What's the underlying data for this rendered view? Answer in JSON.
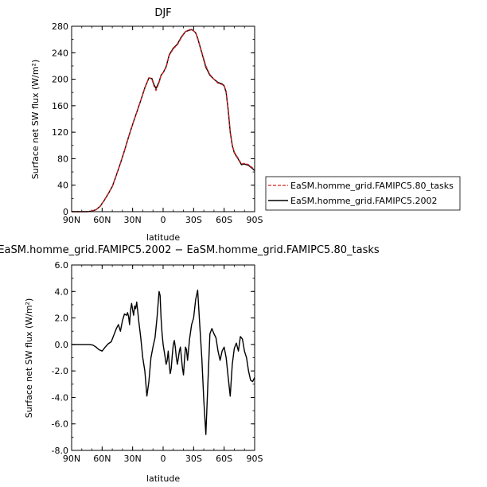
{
  "chart_data": [
    {
      "type": "line",
      "title": "DJF",
      "xlabel": "latitude",
      "ylabel": "Surface net SW flux (W/m²)",
      "xlim": [
        90,
        -90
      ],
      "ylim": [
        0,
        280
      ],
      "x_ticks": [
        90,
        60,
        30,
        0,
        -30,
        -60,
        -90
      ],
      "x_tick_labels": [
        "90N",
        "60N",
        "30N",
        "0",
        "30S",
        "60S",
        "90S"
      ],
      "y_ticks": [
        0,
        40,
        80,
        120,
        160,
        200,
        240,
        280
      ],
      "y_tick_labels": [
        "0",
        "40",
        "80",
        "120",
        "160",
        "200",
        "240",
        "280"
      ],
      "legend_position": "right",
      "series": [
        {
          "name": "EaSM.homme_grid.FAMIPC5.80_tasks",
          "color": "#d62020",
          "dash": "dashed",
          "x": [
            90,
            75,
            70,
            66,
            62,
            58,
            54,
            50,
            46,
            42,
            38,
            34,
            30,
            26,
            22,
            18,
            14,
            11,
            9,
            7,
            4,
            2,
            0,
            -3,
            -6,
            -10,
            -14,
            -18,
            -22,
            -26,
            -28,
            -30,
            -32,
            -34,
            -38,
            -42,
            -46,
            -50,
            -54,
            -58,
            -60,
            -62,
            -64,
            -66,
            -68,
            -70,
            -74,
            -77,
            -80,
            -84,
            -88,
            -90
          ],
          "y": [
            0,
            0,
            1,
            3,
            8,
            17,
            27,
            38,
            55,
            73,
            92,
            113,
            132,
            150,
            168,
            187,
            202,
            200,
            190,
            183,
            195,
            206,
            210,
            218,
            236,
            246,
            252,
            263,
            272,
            275,
            275,
            273,
            270,
            262,
            241,
            220,
            207,
            200,
            194,
            192,
            190,
            182,
            155,
            122,
            101,
            90,
            80,
            72,
            73,
            71,
            66,
            64
          ]
        },
        {
          "name": "EaSM.homme_grid.FAMIPC5.2002",
          "color": "#000000",
          "dash": "solid",
          "x": [
            90,
            75,
            70,
            66,
            62,
            58,
            54,
            50,
            46,
            42,
            38,
            34,
            30,
            26,
            22,
            18,
            14,
            11,
            9,
            7,
            4,
            2,
            0,
            -3,
            -6,
            -10,
            -14,
            -18,
            -22,
            -26,
            -28,
            -30,
            -32,
            -34,
            -38,
            -42,
            -46,
            -50,
            -54,
            -58,
            -60,
            -62,
            -64,
            -66,
            -68,
            -70,
            -74,
            -77,
            -80,
            -84,
            -88,
            -90
          ],
          "y": [
            0,
            0,
            1,
            3,
            8,
            17,
            27,
            38,
            55,
            73,
            92,
            113,
            132,
            150,
            168,
            187,
            202,
            201,
            192,
            186,
            196,
            206,
            210,
            219,
            237,
            247,
            253,
            264,
            272,
            274,
            275,
            273,
            270,
            262,
            240,
            218,
            206,
            200,
            195,
            193,
            190,
            180,
            153,
            120,
            100,
            89,
            79,
            71,
            72,
            70,
            65,
            62
          ]
        }
      ]
    },
    {
      "type": "line",
      "title": "EaSM.homme_grid.FAMIPC5.2002 − EaSM.homme_grid.FAMIPC5.80_tasks",
      "xlabel": "latitude",
      "ylabel": "Surface net SW flux (W/m²)",
      "xlim": [
        90,
        -90
      ],
      "ylim": [
        -8,
        6
      ],
      "x_ticks": [
        90,
        60,
        30,
        0,
        -30,
        -60,
        -90
      ],
      "x_tick_labels": [
        "90N",
        "60N",
        "30N",
        "0",
        "30S",
        "60S",
        "90S"
      ],
      "y_ticks": [
        -8,
        -6,
        -4,
        -2,
        0,
        2,
        4,
        6
      ],
      "y_tick_labels": [
        "-8.0",
        "-6.0",
        "-4.0",
        "-2.0",
        "0.0",
        "2.0",
        "4.0",
        "6.0"
      ],
      "series": [
        {
          "color": "#000000",
          "dash": "solid",
          "x": [
            90,
            75,
            72,
            69,
            66,
            63,
            60,
            57,
            54,
            51,
            48,
            46,
            44,
            42,
            40,
            38,
            36,
            35,
            34,
            33,
            32,
            31,
            30,
            29,
            28,
            27,
            26,
            25,
            24,
            22,
            20,
            18,
            16,
            14,
            12,
            10,
            8,
            6,
            5,
            4,
            3,
            2,
            1,
            0,
            -1,
            -2,
            -3,
            -4,
            -5,
            -6,
            -7,
            -8,
            -9,
            -10,
            -11,
            -12,
            -13,
            -14,
            -15,
            -16,
            -17,
            -18,
            -19,
            -20,
            -21,
            -22,
            -23,
            -24,
            -26,
            -28,
            -30,
            -32,
            -34,
            -36,
            -38,
            -40,
            -42,
            -44,
            -46,
            -48,
            -50,
            -52,
            -54,
            -56,
            -58,
            -60,
            -62,
            -64,
            -66,
            -68,
            -70,
            -72,
            -74,
            -76,
            -78,
            -80,
            -82,
            -84,
            -86,
            -88,
            -90
          ],
          "y": [
            0,
            0,
            0,
            -0.05,
            -0.2,
            -0.4,
            -0.5,
            -0.2,
            0.05,
            0.2,
            0.8,
            1.2,
            1.5,
            1.0,
            1.8,
            2.3,
            2.2,
            2.4,
            2.1,
            1.5,
            2.6,
            3.1,
            2.6,
            2.2,
            2.9,
            2.7,
            3.2,
            2.5,
            1.8,
            0.5,
            -1.0,
            -2.0,
            -3.9,
            -2.8,
            -1.0,
            -0.2,
            0.5,
            2.0,
            3.0,
            4.0,
            3.7,
            2.0,
            0.8,
            0.0,
            -0.5,
            -1.0,
            -1.5,
            -1.2,
            -0.5,
            -1.5,
            -2.2,
            -1.8,
            -0.8,
            0.0,
            0.3,
            -0.2,
            -1.0,
            -1.5,
            -1.0,
            -0.5,
            -0.2,
            -1.0,
            -1.8,
            -2.3,
            -1.2,
            -0.2,
            -0.4,
            -1.2,
            0.4,
            1.5,
            2.0,
            3.4,
            4.1,
            1.5,
            -1.0,
            -4.2,
            -6.8,
            -3.0,
            0.8,
            1.2,
            0.8,
            0.5,
            -0.5,
            -1.2,
            -0.5,
            -0.2,
            -1.0,
            -2.5,
            -3.9,
            -1.5,
            -0.3,
            0.1,
            -0.5,
            0.6,
            0.4,
            -0.5,
            -1.0,
            -2.0,
            -2.7,
            -2.8,
            -2.5
          ]
        }
      ]
    }
  ]
}
